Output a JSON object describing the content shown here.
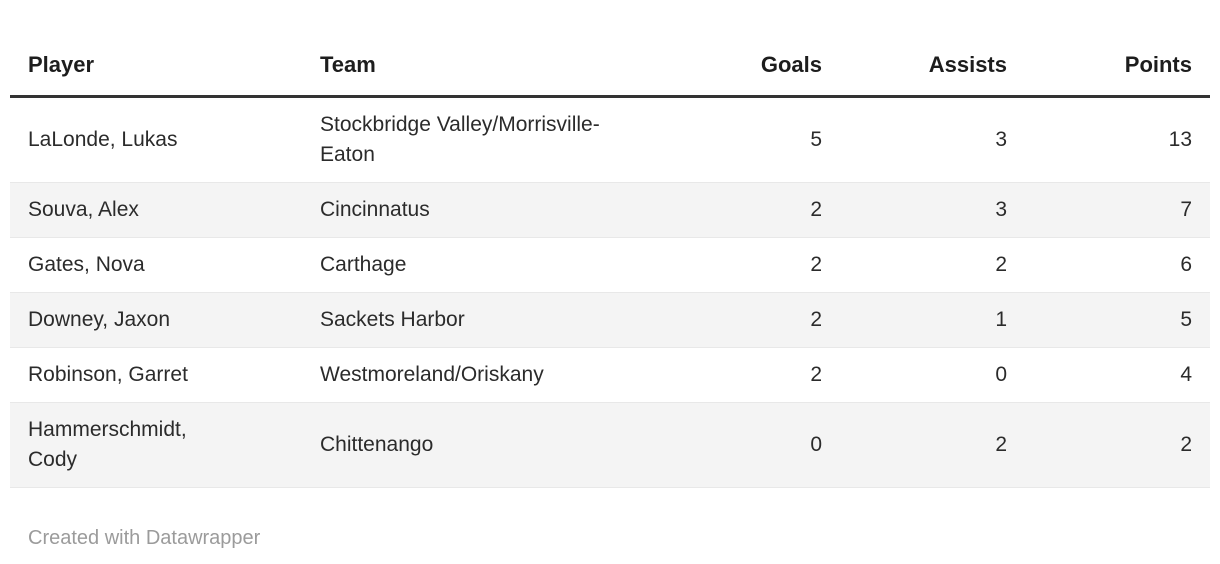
{
  "chart_data": {
    "type": "table",
    "columns": [
      "Player",
      "Team",
      "Goals",
      "Assists",
      "Points"
    ],
    "rows": [
      {
        "player": "LaLonde, Lukas",
        "team": "Stockbridge Valley/Morrisville-Eaton",
        "goals": 5,
        "assists": 3,
        "points": 13
      },
      {
        "player": "Souva, Alex",
        "team": "Cincinnatus",
        "goals": 2,
        "assists": 3,
        "points": 7
      },
      {
        "player": "Gates, Nova",
        "team": "Carthage",
        "goals": 2,
        "assists": 2,
        "points": 6
      },
      {
        "player": "Downey, Jaxon",
        "team": "Sackets Harbor",
        "goals": 2,
        "assists": 1,
        "points": 5
      },
      {
        "player": "Robinson, Garret",
        "team": "Westmoreland/Oriskany",
        "goals": 2,
        "assists": 0,
        "points": 4
      },
      {
        "player": "Hammerschmidt, Cody",
        "team": "Chittenango",
        "goals": 0,
        "assists": 2,
        "points": 2
      }
    ],
    "layout": {
      "zebra_striping": true,
      "numeric_columns_right_aligned": true
    }
  },
  "footer": {
    "attribution": "Created with Datawrapper"
  },
  "colors": {
    "header_text": "#1d1d1d",
    "body_text": "#2b2b2b",
    "header_rule": "#333333",
    "row_border": "#e8e8e8",
    "stripe": "#f4f4f4",
    "attribution_text": "#9b9b9b",
    "background": "#ffffff"
  }
}
